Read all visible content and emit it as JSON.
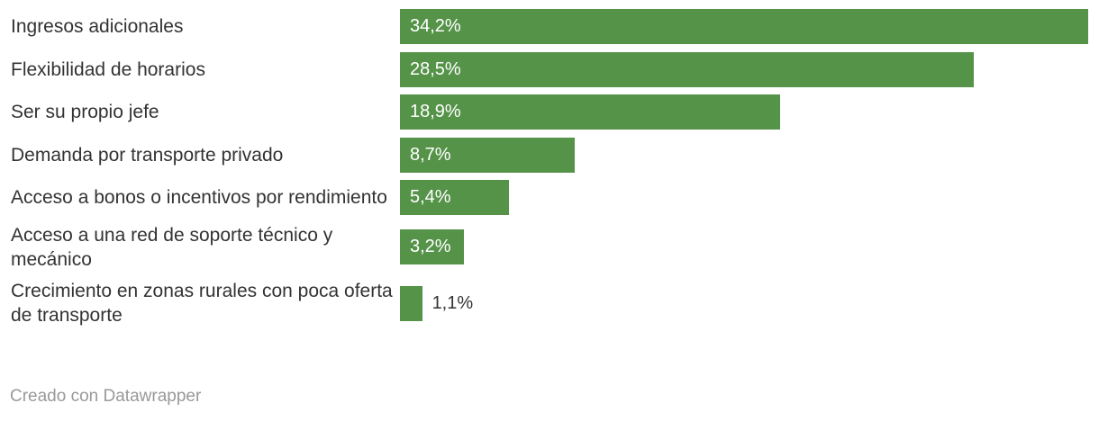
{
  "chart_data": {
    "type": "bar_horizontal",
    "categories": [
      "Ingresos adicionales",
      "Flexibilidad de horarios",
      "Ser su propio jefe",
      "Demanda por transporte privado",
      "Acceso a bonos o incentivos por rendimiento",
      "Acceso a una red de soporte técnico y mecánico",
      "Crecimiento en zonas rurales con poca oferta de transporte"
    ],
    "values": [
      34.2,
      28.5,
      18.9,
      8.7,
      5.4,
      3.2,
      1.1
    ],
    "value_labels": [
      "34,2%",
      "28,5%",
      "18,9%",
      "8,7%",
      "5,4%",
      "3,2%",
      "1,1%"
    ],
    "color": "#559349",
    "footer": "Creado con Datawrapper"
  }
}
